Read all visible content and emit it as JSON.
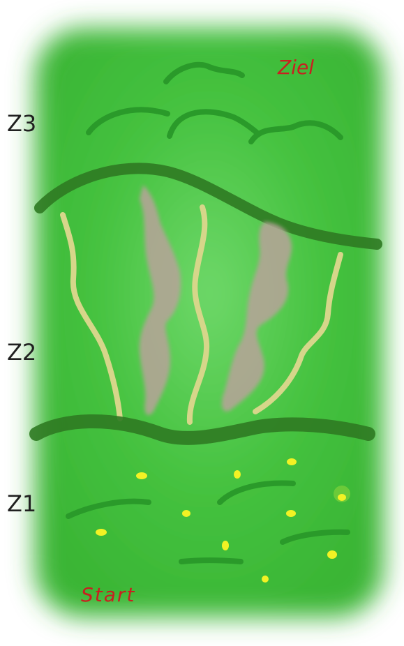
{
  "map": {
    "labels": {
      "goal": "Ziel",
      "start": "Start",
      "zone3": "Z3",
      "zone2": "Z2",
      "zone1": "Z1"
    },
    "colors": {
      "background": "#ffffff",
      "field_green": "#3fbd3a",
      "field_center": "#6fd86a",
      "dark_ridge": "#2f7a22",
      "bush_stroke": "#2a9a2a",
      "path_beige": "#d6d68a",
      "rock_mauve": "#b8a39a",
      "flower_yellow": "#f2f224",
      "label_red": "#c82020",
      "label_dark": "#202020"
    },
    "zones": [
      {
        "id": "zone3",
        "label": "Z3",
        "features": [
          "bush-lines"
        ]
      },
      {
        "id": "zone2",
        "label": "Z2",
        "features": [
          "winding-paths",
          "rock-formations"
        ]
      },
      {
        "id": "zone1",
        "label": "Z1",
        "features": [
          "grass-lines",
          "yellow-flowers"
        ]
      }
    ]
  }
}
